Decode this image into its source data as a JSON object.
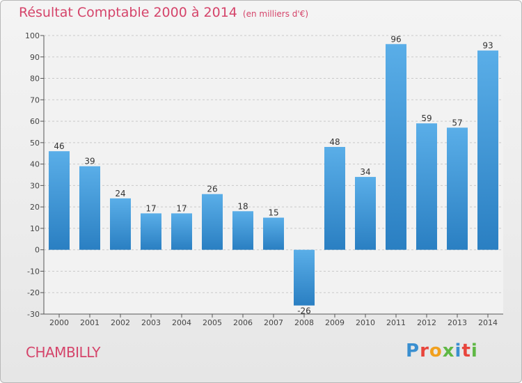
{
  "title": "Résultat Comptable 2000 à 2014",
  "subtitle": "(en milliers d'€)",
  "town": "CHAMBILLY",
  "logo_text": "Proxiti",
  "colors": {
    "title": "#d5446a",
    "bar_top": "#5aaee8",
    "bar_bottom": "#2a7fc2"
  },
  "chart_data": {
    "type": "bar",
    "categories": [
      "2000",
      "2001",
      "2002",
      "2003",
      "2004",
      "2005",
      "2006",
      "2007",
      "2008",
      "2009",
      "2010",
      "2011",
      "2012",
      "2013",
      "2014"
    ],
    "values": [
      46,
      39,
      24,
      17,
      17,
      26,
      18,
      15,
      -26,
      48,
      34,
      96,
      59,
      57,
      93
    ],
    "ylim": [
      -30,
      100
    ],
    "yticks": [
      -30,
      -20,
      -10,
      0,
      10,
      20,
      30,
      40,
      50,
      60,
      70,
      80,
      90,
      100
    ],
    "grid": "horizontal dashed",
    "title": "Résultat Comptable 2000 à 2014",
    "xlabel": "",
    "ylabel": ""
  }
}
